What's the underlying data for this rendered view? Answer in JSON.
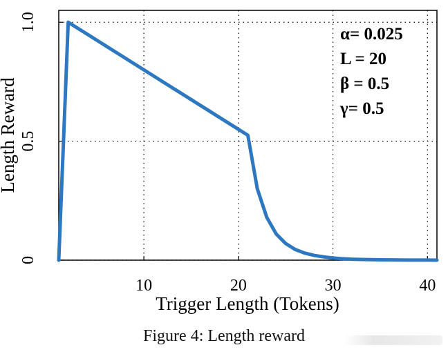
{
  "chart_data": {
    "type": "line",
    "xlabel": "Trigger Length (Tokens)",
    "ylabel": "Length Reward",
    "xlim": [
      1,
      41
    ],
    "ylim": [
      0,
      1.05
    ],
    "xticks": [
      10,
      20,
      30,
      40
    ],
    "yticks": [
      0,
      0.5,
      1.0
    ],
    "xtick_labels": [
      "10",
      "20",
      "30",
      "40"
    ],
    "ytick_labels": [
      "0",
      "0.5",
      "1.0"
    ],
    "grid": true,
    "line_color": "#2e78c1",
    "series": [
      {
        "x": [
          1,
          2,
          21,
          22,
          23,
          24,
          25,
          26,
          27,
          28,
          29,
          30,
          31,
          32,
          33,
          34,
          35,
          36,
          37,
          38,
          39,
          40,
          41
        ],
        "y": [
          0,
          1.0,
          0.525,
          0.3,
          0.18,
          0.11,
          0.07,
          0.045,
          0.03,
          0.02,
          0.014,
          0.009,
          0.006,
          0.004,
          0.003,
          0.002,
          0.0015,
          0.001,
          0.0008,
          0.0005,
          0.0003,
          0.0002,
          0.0001
        ]
      }
    ],
    "annotations": [
      "α= 0.025",
      "L = 20",
      "β = 0.5",
      "γ= 0.5"
    ]
  },
  "caption": "Figure 4: Length reward"
}
